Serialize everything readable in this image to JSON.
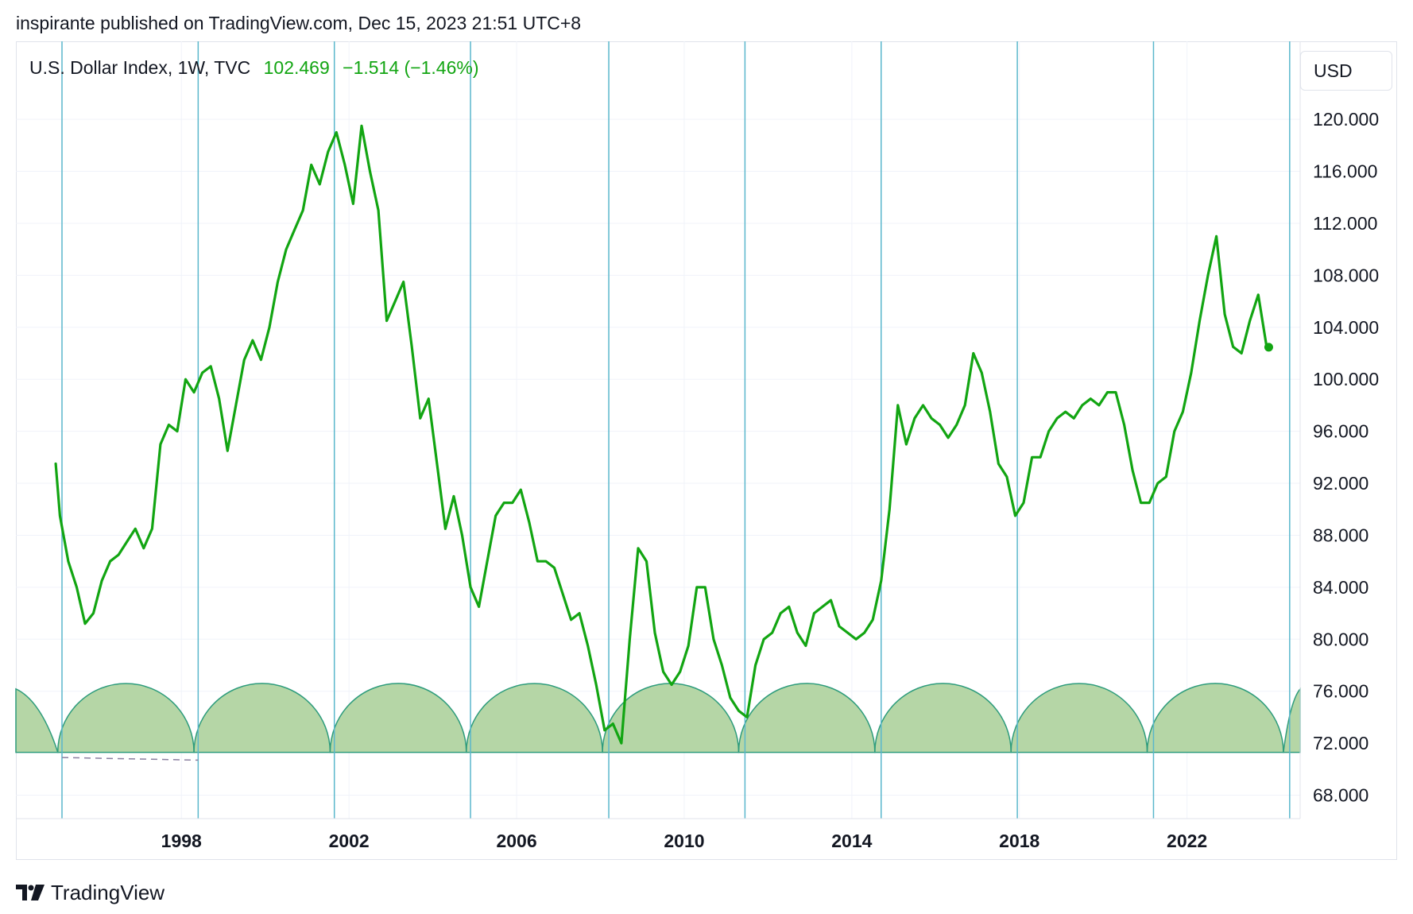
{
  "header": {
    "published": "inspirante published on TradingView.com, Dec 15, 2023 21:51 UTC+8"
  },
  "legend": {
    "symbol": "U.S. Dollar Index, 1W, TVC",
    "last": "102.469",
    "change": "−1.514 (−1.46%)"
  },
  "currency": "USD",
  "brand": {
    "name": "TradingView"
  },
  "colors": {
    "line": "#12a512",
    "cycle_fill": "#b5d6a6",
    "cycle_stroke": "#2e9c7c",
    "vline": "#5ab7cc",
    "grid": "#f0f3fa"
  },
  "chart_data": {
    "type": "line",
    "series": [
      {
        "name": "U.S. Dollar Index",
        "x": [
          1995.0,
          1995.1,
          1995.3,
          1995.5,
          1995.7,
          1995.9,
          1996.1,
          1996.3,
          1996.5,
          1996.7,
          1996.9,
          1997.1,
          1997.3,
          1997.5,
          1997.7,
          1997.9,
          1998.1,
          1998.3,
          1998.5,
          1998.7,
          1998.9,
          1999.1,
          1999.3,
          1999.5,
          1999.7,
          1999.9,
          2000.1,
          2000.3,
          2000.5,
          2000.7,
          2000.9,
          2001.1,
          2001.3,
          2001.5,
          2001.7,
          2001.9,
          2002.1,
          2002.3,
          2002.5,
          2002.7,
          2002.9,
          2003.1,
          2003.3,
          2003.5,
          2003.7,
          2003.9,
          2004.1,
          2004.3,
          2004.5,
          2004.7,
          2004.9,
          2005.1,
          2005.3,
          2005.5,
          2005.7,
          2005.9,
          2006.1,
          2006.3,
          2006.5,
          2006.7,
          2006.9,
          2007.1,
          2007.3,
          2007.5,
          2007.7,
          2007.9,
          2008.1,
          2008.3,
          2008.5,
          2008.7,
          2008.9,
          2009.1,
          2009.3,
          2009.5,
          2009.7,
          2009.9,
          2010.1,
          2010.3,
          2010.5,
          2010.7,
          2010.9,
          2011.1,
          2011.3,
          2011.5,
          2011.7,
          2011.9,
          2012.1,
          2012.3,
          2012.5,
          2012.7,
          2012.9,
          2013.1,
          2013.3,
          2013.5,
          2013.7,
          2013.9,
          2014.1,
          2014.3,
          2014.5,
          2014.7,
          2014.9,
          2015.1,
          2015.3,
          2015.5,
          2015.7,
          2015.9,
          2016.1,
          2016.3,
          2016.5,
          2016.7,
          2016.9,
          2017.1,
          2017.3,
          2017.5,
          2017.7,
          2017.9,
          2018.1,
          2018.3,
          2018.5,
          2018.7,
          2018.9,
          2019.1,
          2019.3,
          2019.5,
          2019.7,
          2019.9,
          2020.1,
          2020.3,
          2020.5,
          2020.7,
          2020.9,
          2021.1,
          2021.3,
          2021.5,
          2021.7,
          2021.9,
          2022.1,
          2022.3,
          2022.5,
          2022.7,
          2022.9,
          2023.1,
          2023.3,
          2023.5,
          2023.7,
          2023.9
        ],
        "y": [
          93.5,
          89.5,
          86.0,
          84.0,
          81.2,
          82.0,
          84.5,
          86.0,
          86.5,
          87.5,
          88.5,
          87.0,
          88.5,
          95.0,
          96.5,
          96.0,
          100.0,
          99.0,
          100.5,
          101.0,
          98.5,
          94.5,
          98.0,
          101.5,
          103.0,
          101.5,
          104.0,
          107.5,
          110.0,
          111.5,
          113.0,
          116.5,
          115.0,
          117.5,
          119.0,
          116.5,
          113.5,
          119.5,
          116.0,
          113.0,
          104.5,
          106.0,
          107.5,
          102.5,
          97.0,
          98.5,
          93.5,
          88.5,
          91.0,
          88.0,
          84.0,
          82.5,
          86.0,
          89.5,
          90.5,
          90.5,
          91.5,
          89.0,
          86.0,
          86.0,
          85.5,
          83.5,
          81.5,
          82.0,
          79.5,
          76.5,
          73.0,
          73.5,
          72.0,
          80.0,
          87.0,
          86.0,
          80.5,
          77.5,
          76.5,
          77.5,
          79.5,
          84.0,
          84.0,
          80.0,
          78.0,
          75.5,
          74.5,
          74.0,
          78.0,
          80.0,
          80.5,
          82.0,
          82.5,
          80.5,
          79.5,
          82.0,
          82.5,
          83.0,
          81.0,
          80.5,
          80.0,
          80.5,
          81.5,
          84.5,
          90.0,
          98.0,
          95.0,
          97.0,
          98.0,
          97.0,
          96.5,
          95.5,
          96.5,
          98.0,
          102.0,
          100.5,
          97.5,
          93.5,
          92.5,
          89.5,
          90.5,
          94.0,
          94.0,
          96.0,
          97.0,
          97.5,
          97.0,
          98.0,
          98.5,
          98.0,
          99.0,
          99.0,
          96.5,
          93.0,
          90.5,
          90.5,
          92.0,
          92.5,
          96.0,
          97.5,
          100.5,
          104.5,
          108.0,
          111.0,
          105.0,
          102.5,
          102.0,
          104.5,
          106.5,
          102.5
        ]
      }
    ],
    "last_point": {
      "x": 2023.95,
      "y": 102.469
    },
    "x_ticks": [
      "1998",
      "2002",
      "2006",
      "2010",
      "2014",
      "2018",
      "2022"
    ],
    "x_tick_values": [
      1998,
      2002,
      2006,
      2010,
      2014,
      2018,
      2022
    ],
    "y_ticks": [
      "68.000",
      "72.000",
      "76.000",
      "80.000",
      "84.000",
      "88.000",
      "92.000",
      "96.000",
      "100.000",
      "104.000",
      "108.000",
      "112.000",
      "116.000",
      "120.000"
    ],
    "y_tick_values": [
      68,
      72,
      76,
      80,
      84,
      88,
      92,
      96,
      100,
      104,
      108,
      112,
      116,
      120
    ],
    "ylim": [
      66.2,
      126.0
    ],
    "xlim": [
      1994.05,
      2024.7
    ],
    "cycle_lines_x": [
      1995.15,
      1998.4,
      2001.65,
      2004.9,
      2008.2,
      2011.45,
      2014.7,
      2017.95,
      2021.2,
      2024.45
    ],
    "cycle_arcs": [
      {
        "x0": 1994.05,
        "x1": 1995.05
      },
      {
        "x0": 1995.05,
        "x1": 1998.3
      },
      {
        "x0": 1998.3,
        "x1": 2001.55
      },
      {
        "x0": 2001.55,
        "x1": 2004.8
      },
      {
        "x0": 2004.8,
        "x1": 2008.05
      },
      {
        "x0": 2008.05,
        "x1": 2011.3
      },
      {
        "x0": 2011.3,
        "x1": 2014.55
      },
      {
        "x0": 2014.55,
        "x1": 2017.8
      },
      {
        "x0": 2017.8,
        "x1": 2021.05
      },
      {
        "x0": 2021.05,
        "x1": 2024.3
      },
      {
        "x0": 2024.3,
        "x1": 2024.7
      }
    ],
    "cycle_base": 71.3,
    "cycle_top": 76.6,
    "dashed_line": {
      "x0": 1995.15,
      "x1": 1998.4,
      "y0": 70.9,
      "y1": 70.7
    },
    "grid": true,
    "legend_position": "top-left"
  }
}
